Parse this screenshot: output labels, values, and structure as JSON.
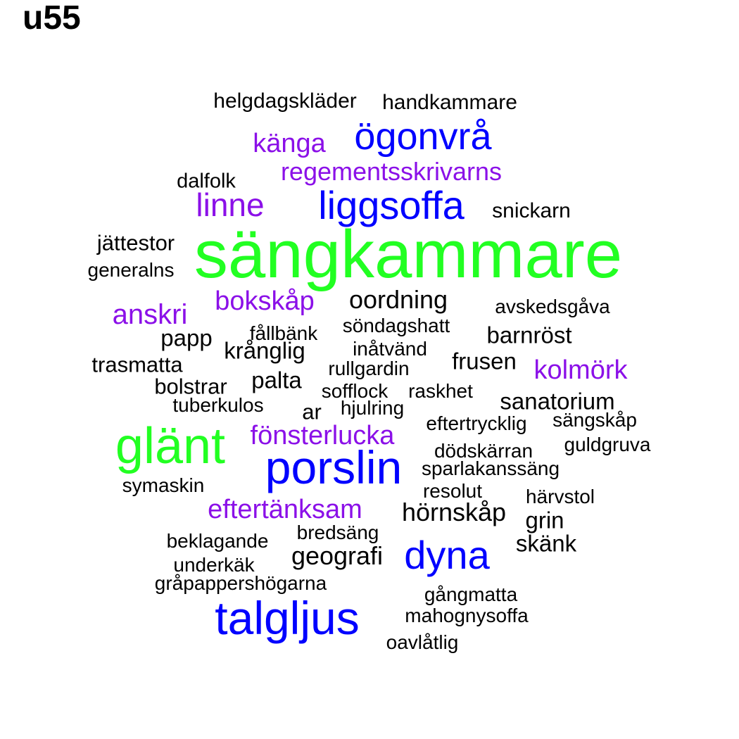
{
  "title": "u55",
  "colors": {
    "black": "#000000",
    "blue": "#0000ff",
    "green": "#22ff22",
    "purple": "#8b10e8"
  },
  "words": [
    {
      "text": "helgdagskläder",
      "color": "black"
    },
    {
      "text": "handkammare",
      "color": "black"
    },
    {
      "text": "känga",
      "color": "purple"
    },
    {
      "text": "ögonvrå",
      "color": "blue"
    },
    {
      "text": "regementsskrivarns",
      "color": "purple"
    },
    {
      "text": "dalfolk",
      "color": "black"
    },
    {
      "text": "linne",
      "color": "purple"
    },
    {
      "text": "liggsoffa",
      "color": "blue"
    },
    {
      "text": "snickarn",
      "color": "black"
    },
    {
      "text": "jättestor",
      "color": "black"
    },
    {
      "text": "sängkammare",
      "color": "green"
    },
    {
      "text": "generalns",
      "color": "black"
    },
    {
      "text": "bokskåp",
      "color": "purple"
    },
    {
      "text": "oordning",
      "color": "black"
    },
    {
      "text": "avskedsgåva",
      "color": "black"
    },
    {
      "text": "anskri",
      "color": "purple"
    },
    {
      "text": "söndagshatt",
      "color": "black"
    },
    {
      "text": "papp",
      "color": "black"
    },
    {
      "text": "fållbänk",
      "color": "black"
    },
    {
      "text": "barnröst",
      "color": "black"
    },
    {
      "text": "krånglig",
      "color": "black"
    },
    {
      "text": "inåtvänd",
      "color": "black"
    },
    {
      "text": "trasmatta",
      "color": "black"
    },
    {
      "text": "rullgardin",
      "color": "black"
    },
    {
      "text": "frusen",
      "color": "black"
    },
    {
      "text": "kolmörk",
      "color": "purple"
    },
    {
      "text": "palta",
      "color": "black"
    },
    {
      "text": "bolstrar",
      "color": "black"
    },
    {
      "text": "sofflock",
      "color": "black"
    },
    {
      "text": "raskhet",
      "color": "black"
    },
    {
      "text": "sanatorium",
      "color": "black"
    },
    {
      "text": "tuberkulos",
      "color": "black"
    },
    {
      "text": "hjulring",
      "color": "black"
    },
    {
      "text": "ar",
      "color": "black"
    },
    {
      "text": "eftertrycklig",
      "color": "black"
    },
    {
      "text": "sängskåp",
      "color": "black"
    },
    {
      "text": "fönsterlucka",
      "color": "purple"
    },
    {
      "text": "glänt",
      "color": "green"
    },
    {
      "text": "dödskärran",
      "color": "black"
    },
    {
      "text": "guldgruva",
      "color": "black"
    },
    {
      "text": "porslin",
      "color": "blue"
    },
    {
      "text": "sparlakanssäng",
      "color": "black"
    },
    {
      "text": "symaskin",
      "color": "black"
    },
    {
      "text": "resolut",
      "color": "black"
    },
    {
      "text": "härvstol",
      "color": "black"
    },
    {
      "text": "eftertänksam",
      "color": "purple"
    },
    {
      "text": "hörnskåp",
      "color": "black"
    },
    {
      "text": "grin",
      "color": "black"
    },
    {
      "text": "bredsäng",
      "color": "black"
    },
    {
      "text": "beklagande",
      "color": "black"
    },
    {
      "text": "skänk",
      "color": "black"
    },
    {
      "text": "dyna",
      "color": "blue"
    },
    {
      "text": "geografi",
      "color": "black"
    },
    {
      "text": "underkäk",
      "color": "black"
    },
    {
      "text": "gråpappershögarna",
      "color": "black"
    },
    {
      "text": "gångmatta",
      "color": "black"
    },
    {
      "text": "talgljus",
      "color": "blue"
    },
    {
      "text": "mahognysoffa",
      "color": "black"
    },
    {
      "text": "oavlåtlig",
      "color": "black"
    }
  ]
}
